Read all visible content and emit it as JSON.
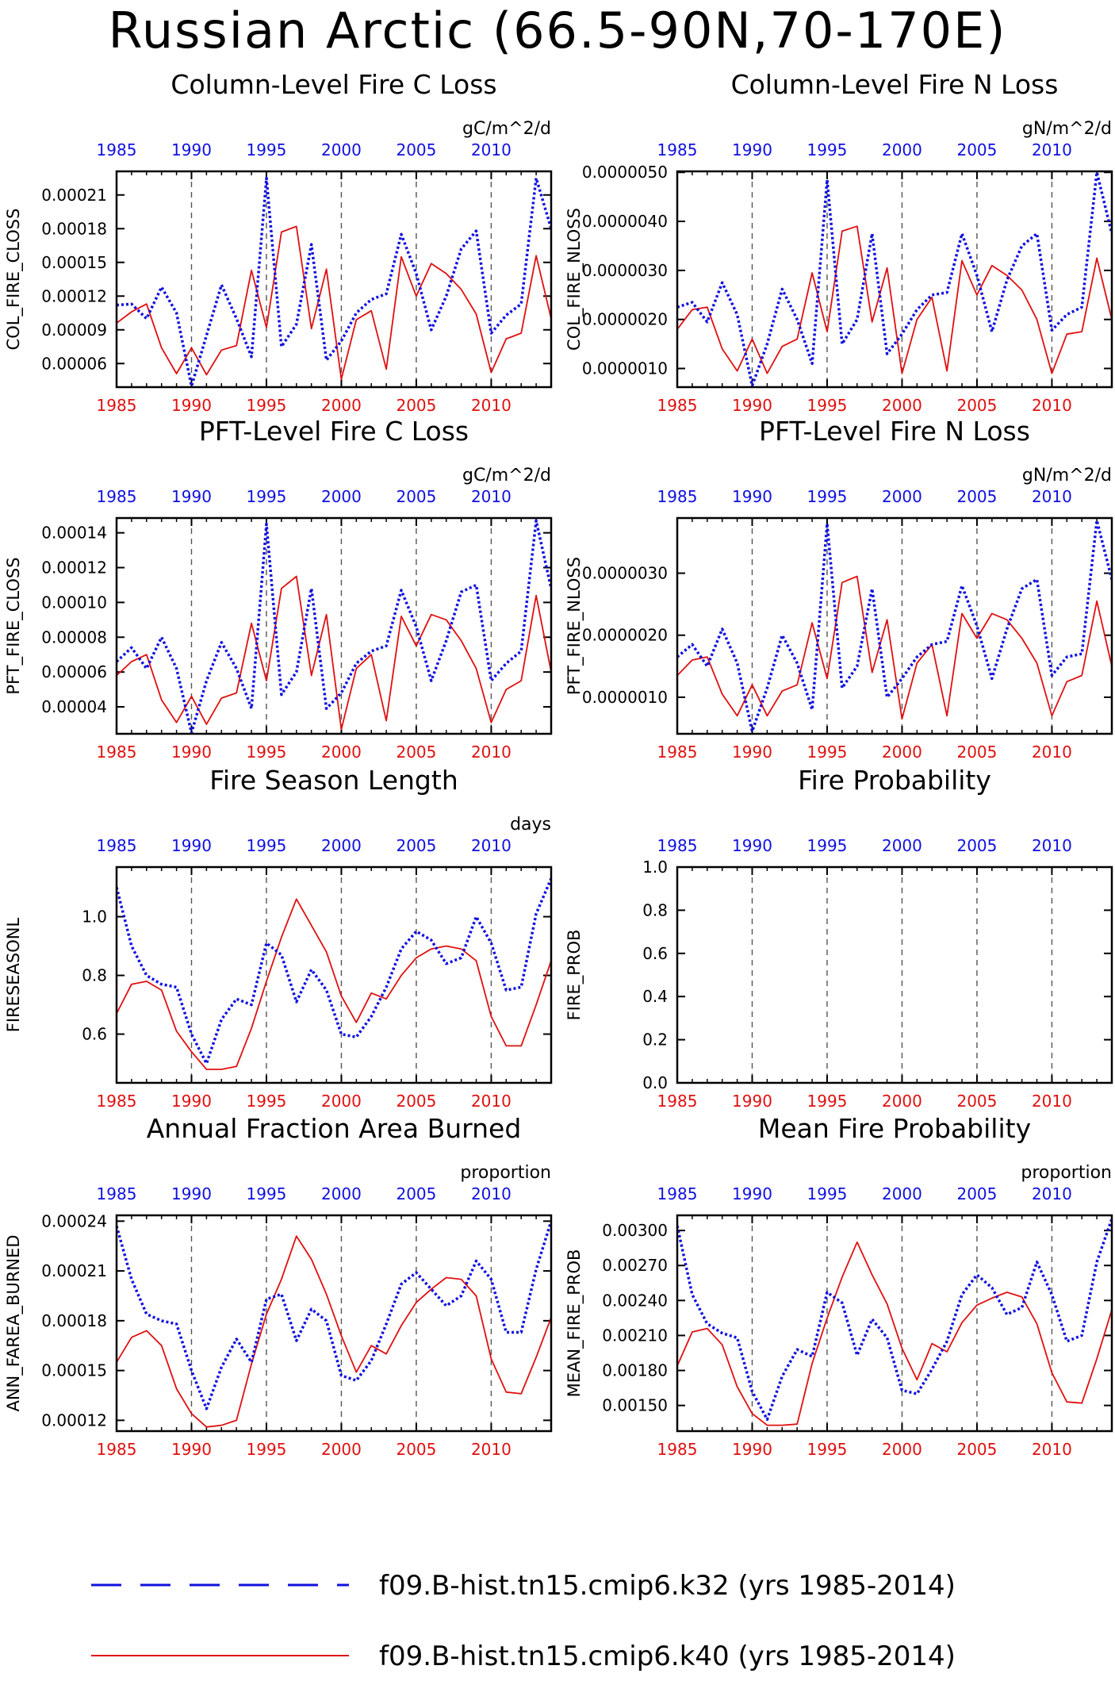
{
  "title": "Russian Arctic (66.5-90N,70-170E)",
  "legend": [
    {
      "label": "f09.B-hist.tn15.cmip6.k32 (yrs 1985-2014)",
      "color": "#1010e0",
      "style": "dotted"
    },
    {
      "label": "f09.B-hist.tn15.cmip6.k40 (yrs 1985-2014)",
      "color": "#e01010",
      "style": "solid"
    }
  ],
  "colors": {
    "series_k32": "#1010e0",
    "series_k40": "#e01010",
    "top_axis": "#1010e0",
    "bottom_axis": "#e01010"
  },
  "chart_data": [
    {
      "type": "line",
      "title": "Column-Level Fire C Loss",
      "units": "gC/m^2/d",
      "ylabel": "COL_FIRE_CLOSS",
      "xlim": [
        1985,
        2014
      ],
      "ylim": [
        3.9e-05,
        0.000231
      ],
      "x_ticks": [
        1985,
        1990,
        1995,
        2000,
        2005,
        2010
      ],
      "y_ticks": [
        "0.00006",
        "0.00009",
        "0.00012",
        "0.00015",
        "0.00018",
        "0.00021"
      ],
      "vgrid": [
        1990,
        1995,
        2000,
        2005,
        2010
      ],
      "grid_style": "dashed vertical",
      "x": [
        1985,
        1986,
        1987,
        1988,
        1989,
        1990,
        1991,
        1992,
        1993,
        1994,
        1995,
        1996,
        1997,
        1998,
        1999,
        2000,
        2001,
        2002,
        2003,
        2004,
        2005,
        2006,
        2007,
        2008,
        2009,
        2010,
        2011,
        2012,
        2013,
        2014
      ],
      "series": [
        {
          "legend": 0,
          "values": [
            0.000112,
            0.000113,
            0.0001,
            0.000128,
            0.000105,
            4e-05,
            8.5e-05,
            0.00013,
            0.0001,
            6.6e-05,
            0.000225,
            7.5e-05,
            9.5e-05,
            0.000166,
            6.3e-05,
            8e-05,
            0.000105,
            0.000117,
            0.000122,
            0.000175,
            0.00014,
            9e-05,
            0.00012,
            0.000162,
            0.000178,
            8.7e-05,
            0.000103,
            0.000113,
            0.000225,
            0.00018
          ]
        },
        {
          "legend": 1,
          "values": [
            9.6e-05,
            0.000106,
            0.000113,
            7.4e-05,
            5.1e-05,
            7.4e-05,
            5e-05,
            7.2e-05,
            7.6e-05,
            0.000143,
            9.2e-05,
            0.000177,
            0.000182,
            9.1e-05,
            0.000144,
            4.6e-05,
            9.9e-05,
            0.000107,
            5.5e-05,
            0.000155,
            0.00012,
            0.000149,
            0.00014,
            0.000126,
            0.000104,
            5.2e-05,
            8.2e-05,
            8.7e-05,
            0.000156,
            0.0001
          ]
        }
      ]
    },
    {
      "type": "line",
      "title": "Column-Level Fire N Loss",
      "units": "gN/m^2/d",
      "ylabel": "COL_FIRE_NLOSS",
      "xlim": [
        1985,
        2014
      ],
      "ylim": [
        6.2e-07,
        5.02e-06
      ],
      "x_ticks": [
        1985,
        1990,
        1995,
        2000,
        2005,
        2010
      ],
      "y_ticks": [
        "0.0000010",
        "0.0000020",
        "0.0000030",
        "0.0000040",
        "0.0000050"
      ],
      "vgrid": [
        1990,
        1995,
        2000,
        2005,
        2010
      ],
      "grid_style": "dashed vertical",
      "x": [
        1985,
        1986,
        1987,
        1988,
        1989,
        1990,
        1991,
        1992,
        1993,
        1994,
        1995,
        1996,
        1997,
        1998,
        1999,
        2000,
        2001,
        2002,
        2003,
        2004,
        2005,
        2006,
        2007,
        2008,
        2009,
        2010,
        2011,
        2012,
        2013,
        2014
      ],
      "series": [
        {
          "legend": 0,
          "values": [
            2.25e-06,
            2.35e-06,
            1.95e-06,
            2.75e-06,
            2.1e-06,
            6.5e-07,
            1.5e-06,
            2.62e-06,
            2e-06,
            1.1e-06,
            4.85e-06,
            1.5e-06,
            2e-06,
            3.75e-06,
            1.3e-06,
            1.7e-06,
            2.2e-06,
            2.5e-06,
            2.55e-06,
            3.75e-06,
            2.9e-06,
            1.75e-06,
            2.8e-06,
            3.5e-06,
            3.75e-06,
            1.78e-06,
            2.1e-06,
            2.25e-06,
            5e-06,
            3.75e-06
          ]
        },
        {
          "legend": 1,
          "values": [
            1.8e-06,
            2.2e-06,
            2.25e-06,
            1.4e-06,
            9.5e-07,
            1.6e-06,
            9e-07,
            1.45e-06,
            1.6e-06,
            2.95e-06,
            1.75e-06,
            3.8e-06,
            3.9e-06,
            1.95e-06,
            3.05e-06,
            9e-07,
            2e-06,
            2.45e-06,
            9.5e-07,
            3.2e-06,
            2.5e-06,
            3.1e-06,
            2.9e-06,
            2.6e-06,
            2e-06,
            9e-07,
            1.7e-06,
            1.75e-06,
            3.25e-06,
            2e-06
          ]
        }
      ]
    },
    {
      "type": "line",
      "title": "PFT-Level Fire C Loss",
      "units": "gC/m^2/d",
      "ylabel": "PFT_FIRE_CLOSS",
      "xlim": [
        1985,
        2014
      ],
      "ylim": [
        2.45e-05,
        0.0001485
      ],
      "x_ticks": [
        1985,
        1990,
        1995,
        2000,
        2005,
        2010
      ],
      "y_ticks": [
        "0.00004",
        "0.00006",
        "0.00008",
        "0.00010",
        "0.00012",
        "0.00014"
      ],
      "vgrid": [
        1990,
        1995,
        2000,
        2005,
        2010
      ],
      "grid_style": "dashed vertical",
      "x": [
        1985,
        1986,
        1987,
        1988,
        1989,
        1990,
        1991,
        1992,
        1993,
        1994,
        1995,
        1996,
        1997,
        1998,
        1999,
        2000,
        2001,
        2002,
        2003,
        2004,
        2005,
        2006,
        2007,
        2008,
        2009,
        2010,
        2011,
        2012,
        2013,
        2014
      ],
      "series": [
        {
          "legend": 0,
          "values": [
            6.6e-05,
            7.4e-05,
            6.2e-05,
            8e-05,
            6.2e-05,
            2.5e-05,
            5.5e-05,
            7.7e-05,
            6.2e-05,
            3.9e-05,
            0.000145,
            4.7e-05,
            6e-05,
            0.000108,
            3.9e-05,
            4.8e-05,
            6.5e-05,
            7.2e-05,
            7.5e-05,
            0.000107,
            8.6e-05,
            5.5e-05,
            7.8e-05,
            0.000106,
            0.00011,
            5.5e-05,
            6.5e-05,
            7.2e-05,
            0.000147,
            0.000108
          ]
        },
        {
          "legend": 1,
          "values": [
            5.8e-05,
            6.6e-05,
            7e-05,
            4.4e-05,
            3.1e-05,
            4.6e-05,
            3e-05,
            4.5e-05,
            4.8e-05,
            8.8e-05,
            5.5e-05,
            0.000108,
            0.000115,
            5.8e-05,
            9.3e-05,
            2.7e-05,
            6.2e-05,
            7e-05,
            3.2e-05,
            9.2e-05,
            7.5e-05,
            9.3e-05,
            9e-05,
            7.8e-05,
            6.2e-05,
            3.1e-05,
            5e-05,
            5.5e-05,
            0.000104,
            6e-05
          ]
        }
      ]
    },
    {
      "type": "line",
      "title": "PFT-Level Fire N Loss",
      "units": "gN/m^2/d",
      "ylabel": "PFT_FIRE_NLOSS",
      "xlim": [
        1985,
        2014
      ],
      "ylim": [
        4.1e-07,
        3.89e-06
      ],
      "x_ticks": [
        1985,
        1990,
        1995,
        2000,
        2005,
        2010
      ],
      "y_ticks": [
        "0.0000010",
        "0.0000020",
        "0.0000030"
      ],
      "vgrid": [
        1990,
        1995,
        2000,
        2005,
        2010
      ],
      "grid_style": "dashed vertical",
      "x": [
        1985,
        1986,
        1987,
        1988,
        1989,
        1990,
        1991,
        1992,
        1993,
        1994,
        1995,
        1996,
        1997,
        1998,
        1999,
        2000,
        2001,
        2002,
        2003,
        2004,
        2005,
        2006,
        2007,
        2008,
        2009,
        2010,
        2011,
        2012,
        2013,
        2014
      ],
      "series": [
        {
          "legend": 0,
          "values": [
            1.65e-06,
            1.85e-06,
            1.5e-06,
            2.1e-06,
            1.55e-06,
            4.5e-07,
            1.15e-06,
            2e-06,
            1.55e-06,
            8e-07,
            3.8e-06,
            1.15e-06,
            1.5e-06,
            2.75e-06,
            1e-06,
            1.3e-06,
            1.65e-06,
            1.85e-06,
            1.9e-06,
            2.8e-06,
            2.15e-06,
            1.3e-06,
            2.1e-06,
            2.75e-06,
            2.9e-06,
            1.35e-06,
            1.65e-06,
            1.7e-06,
            3.85e-06,
            2.9e-06
          ]
        },
        {
          "legend": 1,
          "values": [
            1.35e-06,
            1.6e-06,
            1.65e-06,
            1.05e-06,
            7e-07,
            1.2e-06,
            7e-07,
            1.1e-06,
            1.2e-06,
            2.2e-06,
            1.3e-06,
            2.85e-06,
            2.95e-06,
            1.4e-06,
            2.25e-06,
            6.5e-07,
            1.55e-06,
            1.85e-06,
            7e-07,
            2.35e-06,
            1.95e-06,
            2.35e-06,
            2.25e-06,
            1.95e-06,
            1.55e-06,
            7e-07,
            1.25e-06,
            1.35e-06,
            2.55e-06,
            1.5e-06
          ]
        }
      ]
    },
    {
      "type": "line",
      "title": "Fire Season Length",
      "units": "days",
      "ylabel": "FIRESEASONL",
      "xlim": [
        1985,
        2014
      ],
      "ylim": [
        0.434,
        1.169
      ],
      "x_ticks": [
        1985,
        1990,
        1995,
        2000,
        2005,
        2010
      ],
      "y_ticks": [
        "0.6",
        "0.8",
        "1.0"
      ],
      "vgrid": [
        1990,
        1995,
        2000,
        2005,
        2010
      ],
      "grid_style": "dashed vertical",
      "x": [
        1985,
        1986,
        1987,
        1988,
        1989,
        1990,
        1991,
        1992,
        1993,
        1994,
        1995,
        1996,
        1997,
        1998,
        1999,
        2000,
        2001,
        2002,
        2003,
        2004,
        2005,
        2006,
        2007,
        2008,
        2009,
        2010,
        2011,
        2012,
        2013,
        2014
      ],
      "series": [
        {
          "legend": 0,
          "values": [
            1.1,
            0.9,
            0.8,
            0.77,
            0.76,
            0.6,
            0.5,
            0.65,
            0.72,
            0.7,
            0.91,
            0.87,
            0.71,
            0.82,
            0.75,
            0.6,
            0.59,
            0.66,
            0.76,
            0.89,
            0.95,
            0.92,
            0.84,
            0.86,
            1.0,
            0.91,
            0.75,
            0.76,
            1.01,
            1.13
          ]
        },
        {
          "legend": 1,
          "values": [
            0.67,
            0.77,
            0.78,
            0.75,
            0.61,
            0.54,
            0.48,
            0.48,
            0.49,
            0.62,
            0.78,
            0.93,
            1.06,
            0.97,
            0.88,
            0.73,
            0.64,
            0.74,
            0.72,
            0.8,
            0.86,
            0.89,
            0.9,
            0.89,
            0.85,
            0.66,
            0.56,
            0.56,
            0.7,
            0.85
          ]
        }
      ]
    },
    {
      "type": "line",
      "title": "Fire Probability",
      "units": "",
      "ylabel": "FIRE_PROB",
      "xlim": [
        1985,
        2014
      ],
      "ylim": [
        0.0,
        1.0
      ],
      "x_ticks": [
        1985,
        1990,
        1995,
        2000,
        2005,
        2010
      ],
      "y_ticks": [
        "0.0",
        "0.2",
        "0.4",
        "0.6",
        "0.8",
        "1.0"
      ],
      "vgrid": [
        1990,
        1995,
        2000,
        2005,
        2010
      ],
      "grid_style": "dashed vertical",
      "x": [],
      "series": []
    },
    {
      "type": "line",
      "title": "Annual Fraction Area Burned",
      "units": "proportion",
      "ylabel": "ANN_FAREA_BURNED",
      "xlim": [
        1985,
        2014
      ],
      "ylim": [
        0.0001135,
        0.0002435
      ],
      "x_ticks": [
        1985,
        1990,
        1995,
        2000,
        2005,
        2010
      ],
      "y_ticks": [
        "0.00012",
        "0.00015",
        "0.00018",
        "0.00021",
        "0.00024"
      ],
      "vgrid": [
        1990,
        1995,
        2000,
        2005,
        2010
      ],
      "grid_style": "dashed vertical",
      "x": [
        1985,
        1986,
        1987,
        1988,
        1989,
        1990,
        1991,
        1992,
        1993,
        1994,
        1995,
        1996,
        1997,
        1998,
        1999,
        2000,
        2001,
        2002,
        2003,
        2004,
        2005,
        2006,
        2007,
        2008,
        2009,
        2010,
        2011,
        2012,
        2013,
        2014
      ],
      "series": [
        {
          "legend": 0,
          "values": [
            0.000237,
            0.000205,
            0.000184,
            0.00018,
            0.000178,
            0.00015,
            0.000127,
            0.000152,
            0.000169,
            0.000155,
            0.000193,
            0.000196,
            0.000168,
            0.000187,
            0.00018,
            0.000147,
            0.000144,
            0.000156,
            0.000178,
            0.000202,
            0.000209,
            0.000199,
            0.000189,
            0.000195,
            0.000216,
            0.000205,
            0.000173,
            0.000173,
            0.000211,
            0.00024
          ]
        },
        {
          "legend": 1,
          "values": [
            0.000155,
            0.00017,
            0.000174,
            0.000165,
            0.000139,
            0.000124,
            0.000116,
            0.000117,
            0.00012,
            0.000154,
            0.000184,
            0.000205,
            0.000231,
            0.000217,
            0.000196,
            0.000171,
            0.000149,
            0.000165,
            0.00016,
            0.000177,
            0.000191,
            0.000199,
            0.000206,
            0.000205,
            0.000195,
            0.000157,
            0.000137,
            0.000136,
            0.000158,
            0.000182
          ]
        }
      ]
    },
    {
      "type": "line",
      "title": "Mean Fire Probability",
      "units": "proportion",
      "ylabel": "MEAN_FIRE_PROB",
      "xlim": [
        1985,
        2014
      ],
      "ylim": [
        0.00128,
        0.00313
      ],
      "x_ticks": [
        1985,
        1990,
        1995,
        2000,
        2005,
        2010
      ],
      "y_ticks": [
        "0.00150",
        "0.00180",
        "0.00210",
        "0.00240",
        "0.00270",
        "0.00300"
      ],
      "vgrid": [
        1990,
        1995,
        2000,
        2005,
        2010
      ],
      "grid_style": "dashed vertical",
      "x": [
        1985,
        1986,
        1987,
        1988,
        1989,
        1990,
        1991,
        1992,
        1993,
        1994,
        1995,
        1996,
        1997,
        1998,
        1999,
        2000,
        2001,
        2002,
        2003,
        2004,
        2005,
        2006,
        2007,
        2008,
        2009,
        2010,
        2011,
        2012,
        2013,
        2014
      ],
      "series": [
        {
          "legend": 0,
          "values": [
            0.00304,
            0.00245,
            0.0022,
            0.00212,
            0.00208,
            0.00162,
            0.00138,
            0.00175,
            0.00198,
            0.00192,
            0.00247,
            0.00238,
            0.00193,
            0.00224,
            0.00208,
            0.00163,
            0.0016,
            0.00181,
            0.00205,
            0.00245,
            0.00262,
            0.00251,
            0.00228,
            0.00234,
            0.00273,
            0.00245,
            0.00205,
            0.0021,
            0.00273,
            0.0031
          ]
        },
        {
          "legend": 1,
          "values": [
            0.00184,
            0.00213,
            0.00216,
            0.00202,
            0.00166,
            0.00143,
            0.00133,
            0.00133,
            0.00134,
            0.00186,
            0.00225,
            0.0026,
            0.0029,
            0.00262,
            0.00237,
            0.00199,
            0.00172,
            0.00203,
            0.00196,
            0.00221,
            0.00236,
            0.00242,
            0.00247,
            0.00243,
            0.0022,
            0.00178,
            0.00153,
            0.00152,
            0.0019,
            0.00232
          ]
        }
      ]
    }
  ]
}
